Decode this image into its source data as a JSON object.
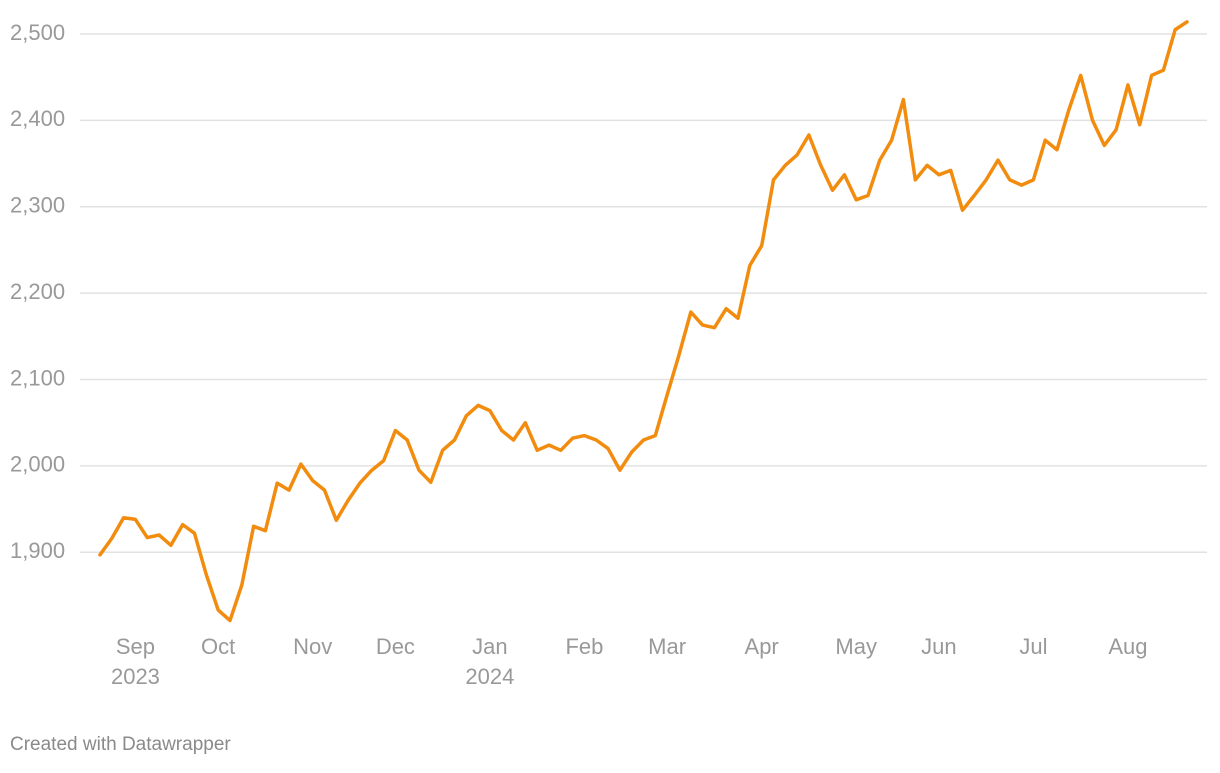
{
  "chart_data": {
    "type": "line",
    "color": "#f28c0f",
    "grid": true,
    "credit": "Created with Datawrapper",
    "categories": [
      null,
      null,
      null,
      "Sep 2023",
      null,
      null,
      null,
      null,
      null,
      null,
      "Oct",
      null,
      null,
      null,
      null,
      null,
      null,
      null,
      "Nov",
      null,
      null,
      null,
      null,
      null,
      null,
      "Dec",
      null,
      null,
      null,
      null,
      null,
      null,
      null,
      "Jan 2024",
      null,
      null,
      null,
      null,
      null,
      null,
      null,
      "Feb",
      null,
      null,
      null,
      null,
      null,
      null,
      "Mar",
      null,
      null,
      null,
      null,
      null,
      null,
      null,
      "Apr",
      null,
      null,
      null,
      null,
      null,
      null,
      null,
      "May",
      null,
      null,
      null,
      null,
      null,
      null,
      "Jun",
      null,
      null,
      null,
      null,
      null,
      null,
      null,
      "Jul",
      null,
      null,
      null,
      null,
      null,
      null,
      null,
      "Aug",
      null,
      null,
      null,
      null,
      null
    ],
    "values": [
      1897,
      1916,
      1940,
      1938,
      1917,
      1920,
      1908,
      1932,
      1922,
      1874,
      1833,
      1821,
      1862,
      1930,
      1925,
      1980,
      1972,
      2002,
      1983,
      1972,
      1937,
      1960,
      1980,
      1995,
      2006,
      2041,
      2030,
      1995,
      1981,
      2018,
      2030,
      2058,
      2070,
      2064,
      2041,
      2030,
      2050,
      2018,
      2024,
      2018,
      2032,
      2035,
      2030,
      2020,
      1995,
      2016,
      2030,
      2035,
      2082,
      2128,
      2178,
      2163,
      2160,
      2182,
      2171,
      2232,
      2255,
      2331,
      2348,
      2360,
      2383,
      2348,
      2319,
      2337,
      2308,
      2313,
      2354,
      2377,
      2424,
      2331,
      2348,
      2337,
      2342,
      2296,
      2313,
      2331,
      2354,
      2331,
      2325,
      2331,
      2377,
      2366,
      2412,
      2452,
      2400,
      2371,
      2389,
      2441,
      2395,
      2452,
      2458,
      2505,
      2514
    ],
    "ylim": [
      1810,
      2515
    ],
    "yticks": [
      {
        "value": 1900,
        "label": "1,900"
      },
      {
        "value": 2000,
        "label": "2,000"
      },
      {
        "value": 2100,
        "label": "2,100"
      },
      {
        "value": 2200,
        "label": "2,200"
      },
      {
        "value": 2300,
        "label": "2,300"
      },
      {
        "value": 2400,
        "label": "2,400"
      },
      {
        "value": 2500,
        "label": "2,500"
      }
    ]
  }
}
